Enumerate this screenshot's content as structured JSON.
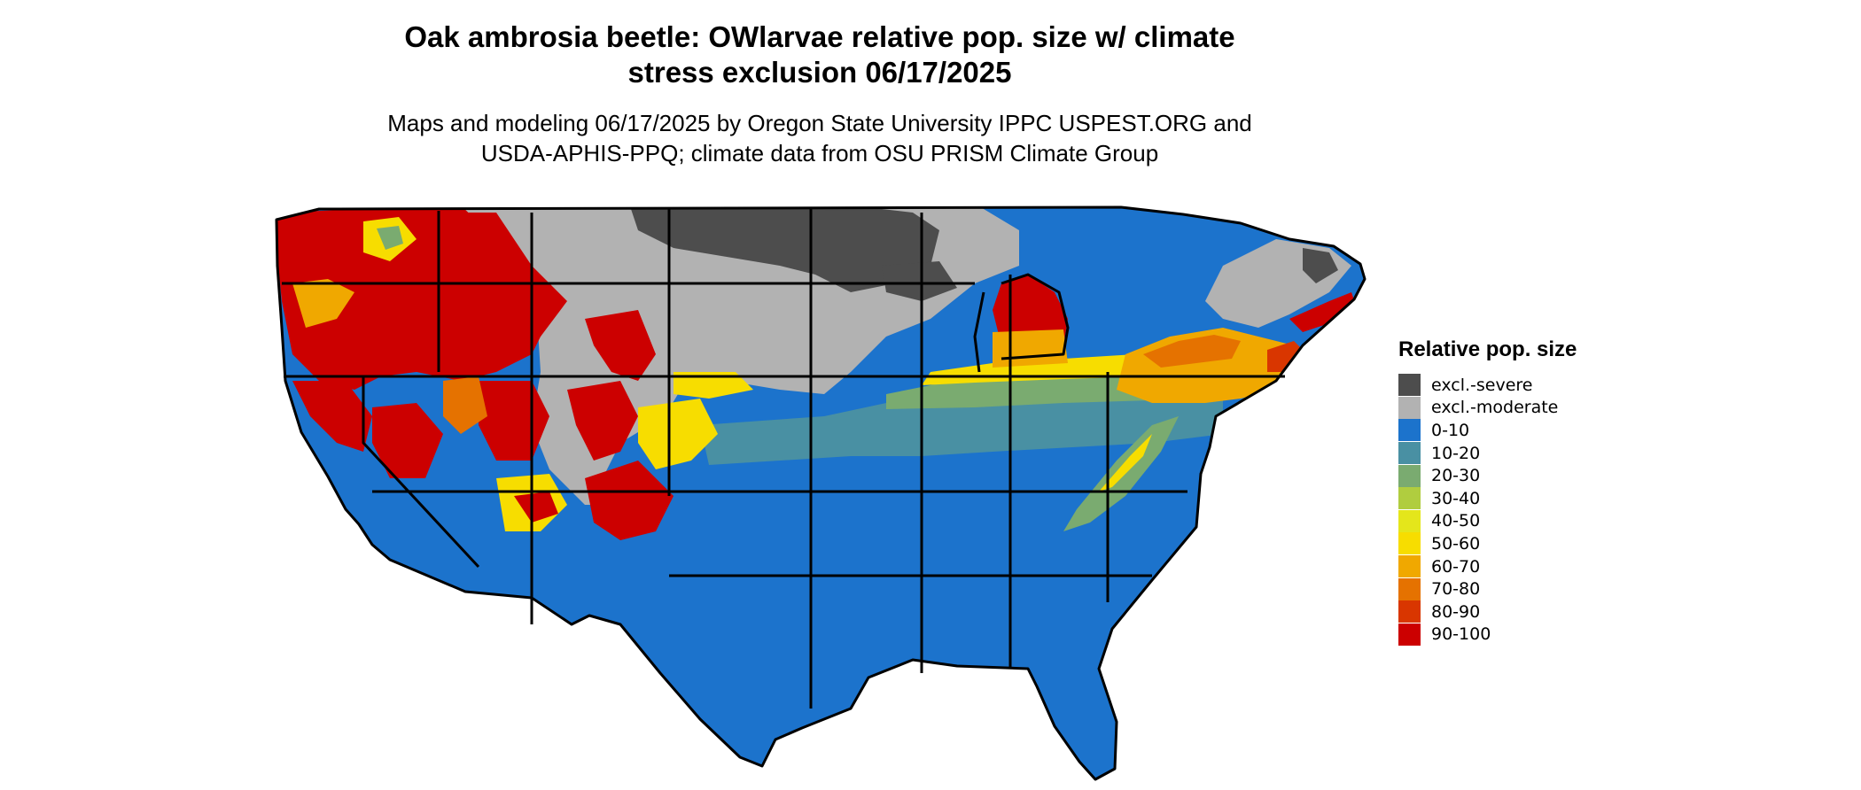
{
  "title_line1": "Oak ambrosia beetle: OWlarvae relative pop. size w/ climate",
  "title_line2": "stress exclusion 06/17/2025",
  "subtitle_line1": "Maps and modeling 06/17/2025 by Oregon State University IPPC USPEST.ORG and",
  "subtitle_line2": "USDA-APHIS-PPQ; climate data from OSU PRISM Climate Group",
  "legend": {
    "title": "Relative pop. size",
    "items": [
      {
        "label": "excl.-severe",
        "color": "#4d4d4d"
      },
      {
        "label": "excl.-moderate",
        "color": "#b2b2b2"
      },
      {
        "label": "0-10",
        "color": "#1c73cc"
      },
      {
        "label": "10-20",
        "color": "#4990a3"
      },
      {
        "label": "20-30",
        "color": "#7aab70"
      },
      {
        "label": "30-40",
        "color": "#b0cd3f"
      },
      {
        "label": "40-50",
        "color": "#e4e61b"
      },
      {
        "label": "50-60",
        "color": "#f7dd00"
      },
      {
        "label": "60-70",
        "color": "#f0a800"
      },
      {
        "label": "70-80",
        "color": "#e57200"
      },
      {
        "label": "80-90",
        "color": "#d93600"
      },
      {
        "label": "90-100",
        "color": "#cc0000"
      }
    ]
  }
}
